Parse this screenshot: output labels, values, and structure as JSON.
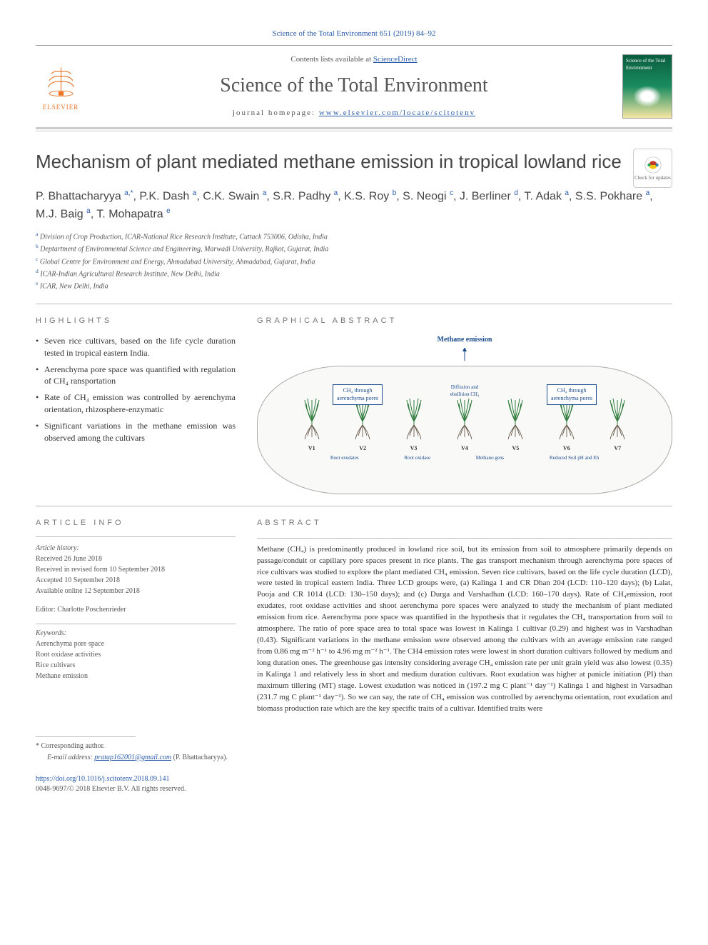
{
  "header": {
    "citation": "Science of the Total Environment 651 (2019) 84–92",
    "contents_prefix": "Contents lists available at ",
    "contents_link": "ScienceDirect",
    "journal_name": "Science of the Total Environment",
    "homepage_label": "journal homepage: ",
    "homepage_url": "www.elsevier.com/locate/scitotenv",
    "publisher": "ELSEVIER",
    "cover_text": "Science of the Total Environment"
  },
  "updates_badge": "Check for updates",
  "title": "Mechanism of plant mediated methane emission in tropical lowland rice",
  "authors_html": "P. Bhattacharyya <sup>a,*</sup>, P.K. Dash <sup>a</sup>, C.K. Swain <sup>a</sup>, S.R. Padhy <sup>a</sup>, K.S. Roy <sup>b</sup>, S. Neogi <sup>c</sup>, J. Berliner <sup>d</sup>, T. Adak <sup>a</sup>, S.S. Pokhare <sup>a</sup>, M.J. Baig <sup>a</sup>, T. Mohapatra <sup>e</sup>",
  "affiliations": [
    {
      "sup": "a",
      "text": "Division of Crop Production, ICAR-National Rice Research Institute, Cuttack 753006, Odisha, India"
    },
    {
      "sup": "b",
      "text": "Deptartment of Environmental Science and Engineering, Marwadi University, Rajkot, Gujarat, India"
    },
    {
      "sup": "c",
      "text": "Global Centre for Environment and Energy, Ahmadabad University, Ahmadabad, Gujarat, India"
    },
    {
      "sup": "d",
      "text": "ICAR-Indian Agricultural Research Institute, New Delhi, India"
    },
    {
      "sup": "e",
      "text": "ICAR, New Delhi, India"
    }
  ],
  "highlights": {
    "heading": "HIGHLIGHTS",
    "items": [
      "Seven rice cultivars, based on the life cycle duration tested in tropical eastern India.",
      "Aerenchyma pore space was quantified with regulation of CH₄ ransportation",
      "Rate of CH₄ emission was controlled by aerenchyma orientation, rhizosphere-enzymatic",
      "Significant variations in the methane emission was observed among the cultivars"
    ]
  },
  "graphical_abstract": {
    "heading": "GRAPHICAL ABSTRACT",
    "main_label": "Methane emission",
    "box_left": "CH₄ through aerenchyma pores",
    "box_mid": "Diffusion and ebullition CH₄",
    "box_right": "CH₄ through aerenchyma pores",
    "plant_labels": [
      "V1",
      "V2",
      "V3",
      "V4",
      "V5",
      "V6",
      "V7"
    ],
    "bottom_labels": [
      "Root exudates",
      "Root oxidase",
      "Methano gens",
      "Reduced Soil pH and Eh"
    ],
    "colors": {
      "leaf": "#2d7a3a",
      "stem": "#8b5a2b",
      "root": "#5a4a3a",
      "text": "#1a4b8c",
      "border": "#1a4b8c"
    }
  },
  "article_info": {
    "heading": "ARTICLE INFO",
    "history_label": "Article history:",
    "history": [
      "Received 26 June 2018",
      "Received in revised form 10 September 2018",
      "Accepted 10 September 2018",
      "Available online 12 September 2018"
    ],
    "editor": "Editor: Charlotte Poschenrieder",
    "keywords_label": "Keywords:",
    "keywords": [
      "Aerenchyma pore space",
      "Root oxidase activities",
      "Rice cultivars",
      "Methane emission"
    ]
  },
  "abstract": {
    "heading": "ABSTRACT",
    "text": "Methane (CH₄) is predominantly produced in lowland rice soil, but its emission from soil to atmosphere primarily depends on passage/conduit or capillary pore spaces present in rice plants. The gas transport mechanism through aerenchyma pore spaces of rice cultivars was studied to explore the plant mediated CH₄ emission. Seven rice cultivars, based on the life cycle duration (LCD), were tested in tropical eastern India. Three LCD groups were, (a) Kalinga 1 and CR Dhan 204 (LCD: 110–120 days); (b) Lalat, Pooja and CR 1014 (LCD: 130–150 days); and (c) Durga and Varshadhan (LCD: 160–170 days). Rate of CH₄emission, root exudates, root oxidase activities and shoot aerenchyma pore spaces were analyzed to study the mechanism of plant mediated emission from rice. Aerenchyma pore space was quantified in the hypothesis that it regulates the CH₄ transportation from soil to atmosphere. The ratio of pore space area to total space was lowest in Kalinga 1 cultivar (0.29) and highest was in Varshadhan (0.43). Significant variations in the methane emission were observed among the cultivars with an average emission rate ranged from 0.86 mg m⁻² h⁻¹ to 4.96 mg m⁻² h⁻¹. The CH4 emission rates were lowest in short duration cultivars followed by medium and long duration ones. The greenhouse gas intensity considering average CH₄ emission rate per unit grain yield was also lowest (0.35) in Kalinga 1 and relatively less in short and medium duration cultivars. Root exudation was higher at panicle initiation (PI) than maximum tillering (MT) stage. Lowest exudation was noticed in (197.2 mg C plant⁻¹ day⁻¹) Kalinga 1 and highest in Varsadhan (231.7 mg C plant⁻¹ day⁻¹). So we can say, the rate of CH₄ emission was controlled by aerenchyma orientation, root exudation and biomass production rate which are the key specific traits of a cultivar. Identified traits were"
  },
  "footer": {
    "corresponding": "* Corresponding author.",
    "email_label": "E-mail address:",
    "email": "pratap162001@gmail.com",
    "email_name": "(P. Bhattacharyya).",
    "doi": "https://doi.org/10.1016/j.scitotenv.2018.09.141",
    "issn": "0048-9697/© 2018 Elsevier B.V. All rights reserved."
  }
}
